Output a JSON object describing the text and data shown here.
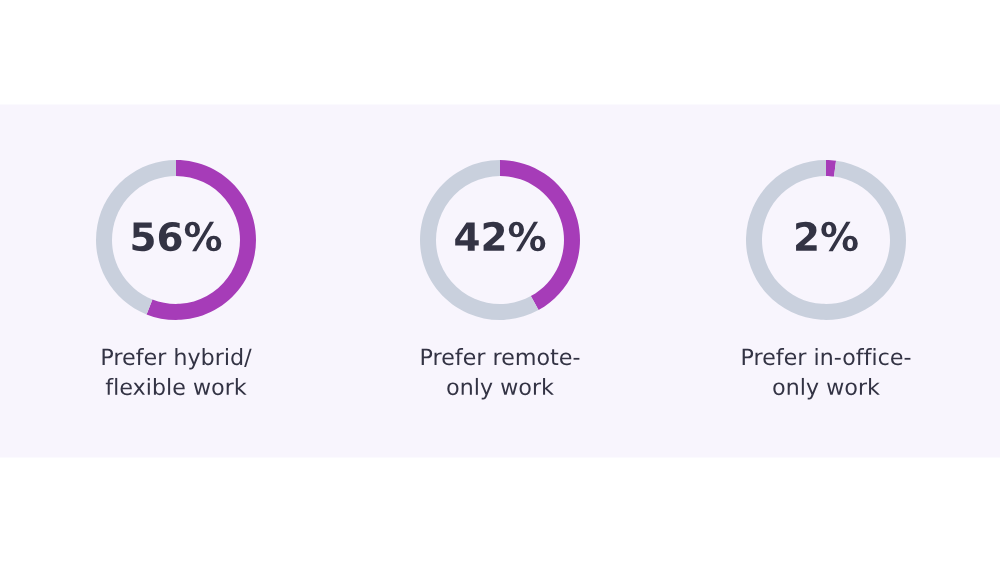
{
  "chart_data": [
    {
      "type": "donut",
      "title": "Prefer hybrid/\nflexible work",
      "categories": [
        null,
        null
      ],
      "values": [
        56,
        44
      ],
      "colors": [
        "#a63cb8",
        "#c9d0dd"
      ],
      "value_labels": [
        "56%",
        null
      ]
    },
    {
      "type": "donut",
      "title": "Prefer remote-\nonly work",
      "categories": [
        null,
        null
      ],
      "values": [
        42,
        58
      ],
      "colors": [
        "#a63cb8",
        "#c9d0dd"
      ],
      "value_labels": [
        "42%",
        null
      ]
    },
    {
      "type": "donut",
      "title": "Prefer in-office-\nonly work",
      "categories": [
        null,
        null
      ],
      "values": [
        2,
        98
      ],
      "colors": [
        "#a63cb8",
        "#c9d0dd"
      ],
      "value_labels": [
        "2%",
        null
      ]
    }
  ]
}
